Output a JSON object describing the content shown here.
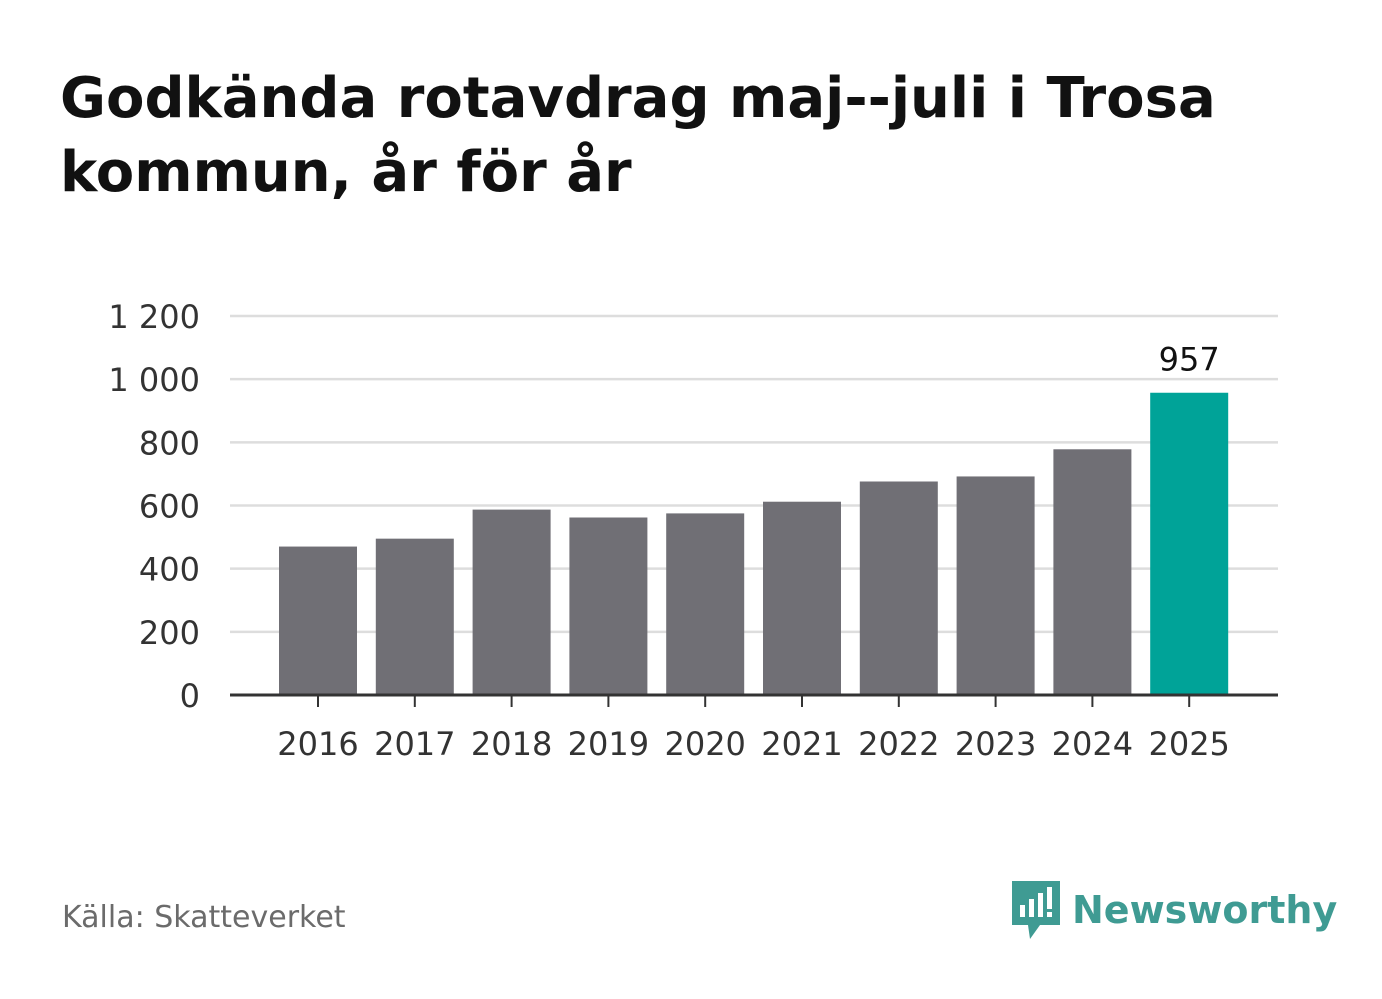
{
  "title": "Godkända rotavdrag maj--juli i Trosa kommun, år för år",
  "source": "Källa: Skatteverket",
  "brand": {
    "name": "Newsworthy",
    "icon": "newsworthy-logo-icon",
    "color": "#3f9b93"
  },
  "colors": {
    "bar": "#706f75",
    "highlight": "#00a398",
    "grid": "#dddddd",
    "axis": "#333333"
  },
  "chart_data": {
    "type": "bar",
    "categories": [
      "2016",
      "2017",
      "2018",
      "2019",
      "2020",
      "2021",
      "2022",
      "2023",
      "2024",
      "2025"
    ],
    "values": [
      470,
      495,
      587,
      562,
      575,
      612,
      676,
      692,
      778,
      957
    ],
    "highlight_index": 9,
    "data_labels": [
      {
        "index": 9,
        "text": "957"
      }
    ],
    "ylim": [
      0,
      1200
    ],
    "yticks": [
      0,
      200,
      400,
      600,
      800,
      1000,
      1200
    ],
    "ytick_labels": [
      "0",
      "200",
      "400",
      "600",
      "800",
      "1 000",
      "1 200"
    ],
    "grid": true,
    "legend": "none",
    "xlabel": "",
    "ylabel": ""
  }
}
